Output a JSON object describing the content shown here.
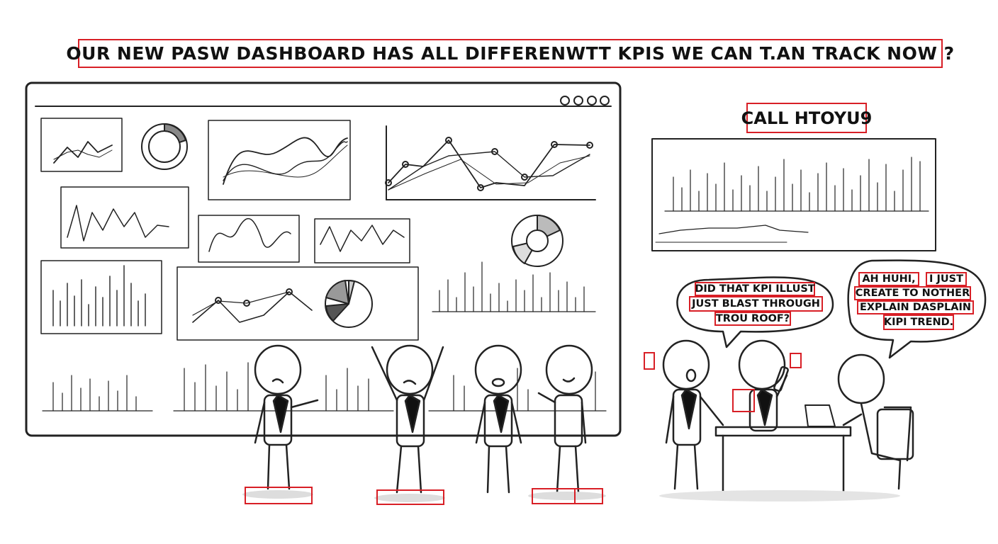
{
  "caption": "OUR NEW PASW DASHBOARD HAS ALL DIFFERENWTT KPiS WE CAN T.AN TRACK NOW ?",
  "callout": "CALL HTOYU9",
  "bubble_left": {
    "line1": "DiD THAT KPi ILLUST",
    "line2": "JUST BLAST THROUGH",
    "line3": "TROU ROOF?"
  },
  "bubble_right": {
    "line1a": "AH HUHi,",
    "line1b": "I JUST",
    "line2": "CREATE TO NOTHER",
    "line3": "EXPLAIN DASPLAIN",
    "line4": "KiPi TREND."
  },
  "colors": {
    "highlight_box": "#d81f26",
    "ink": "#111111",
    "paper": "#ffffff"
  }
}
